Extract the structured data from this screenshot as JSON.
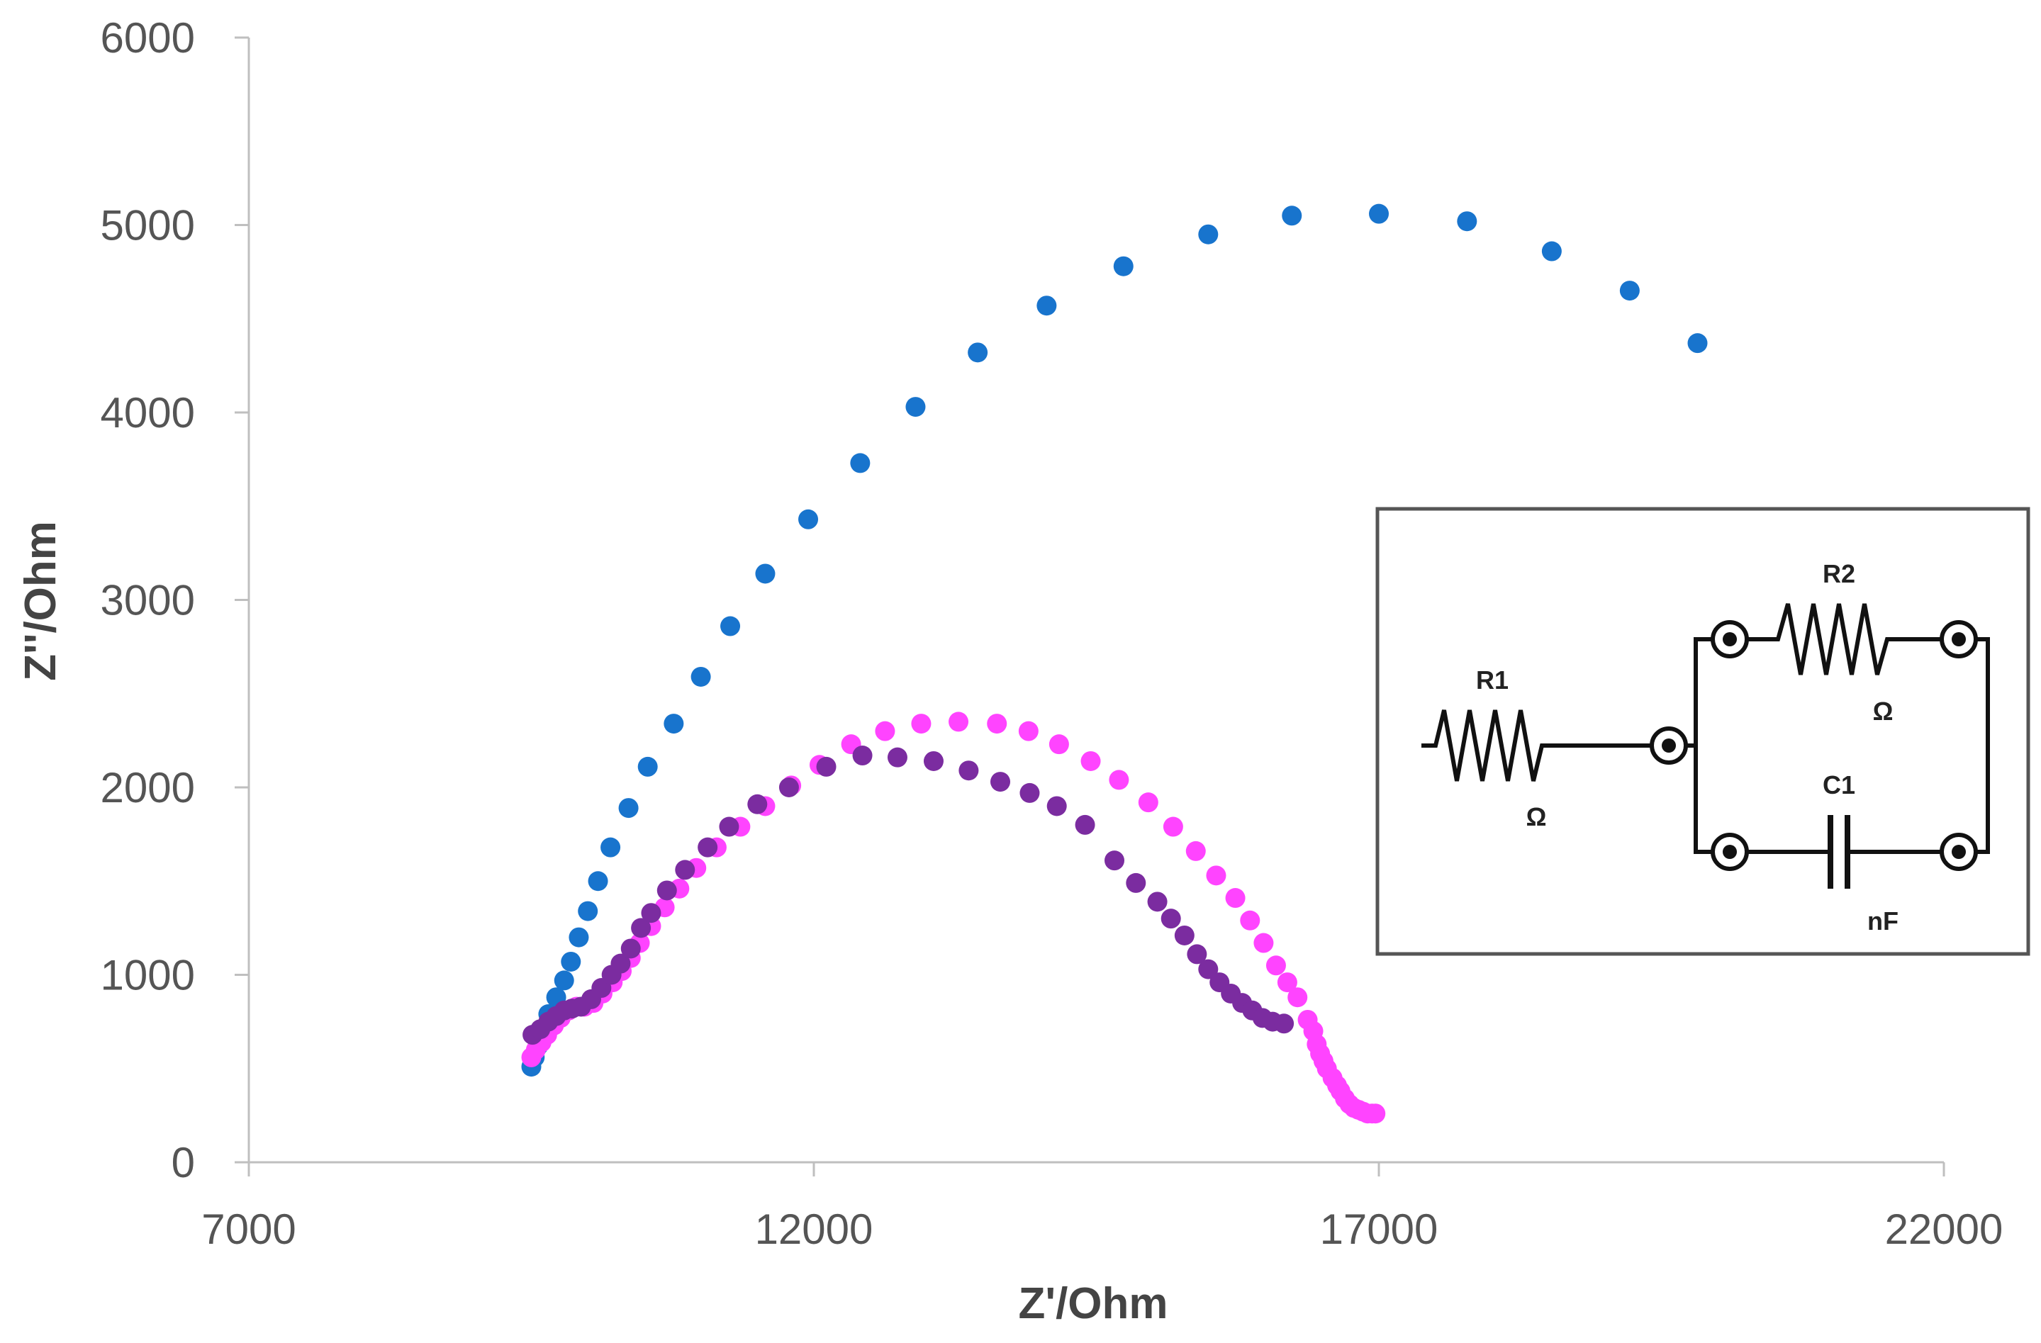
{
  "chart_data": {
    "type": "scatter",
    "title": "",
    "xlabel": "Z'/Ohm",
    "ylabel": "Z''/Ohm",
    "xlim": [
      7000,
      22000
    ],
    "ylim": [
      0,
      6000
    ],
    "xticks": [
      7000,
      12000,
      17000,
      22000
    ],
    "yticks": [
      0,
      1000,
      2000,
      3000,
      4000,
      5000,
      6000
    ],
    "xtick_labels": [
      "7000",
      "12000",
      "17000",
      "22000"
    ],
    "ytick_labels": [
      "0",
      "1000",
      "2000",
      "3000",
      "4000",
      "5000",
      "6000"
    ],
    "grid": false,
    "legend": "none",
    "series": [
      {
        "color": "#1874CD",
        "points": [
          [
            9500,
            510
          ],
          [
            9530,
            560
          ],
          [
            9560,
            620
          ],
          [
            9600,
            700
          ],
          [
            9650,
            790
          ],
          [
            9720,
            880
          ],
          [
            9790,
            970
          ],
          [
            9850,
            1070
          ],
          [
            9920,
            1200
          ],
          [
            10000,
            1340
          ],
          [
            10090,
            1500
          ],
          [
            10200,
            1680
          ],
          [
            10360,
            1890
          ],
          [
            10530,
            2110
          ],
          [
            10760,
            2340
          ],
          [
            11000,
            2590
          ],
          [
            11260,
            2860
          ],
          [
            11570,
            3140
          ],
          [
            11950,
            3430
          ],
          [
            12410,
            3730
          ],
          [
            12900,
            4030
          ],
          [
            13450,
            4320
          ],
          [
            14060,
            4570
          ],
          [
            14740,
            4780
          ],
          [
            15490,
            4950
          ],
          [
            16230,
            5050
          ],
          [
            17000,
            5060
          ],
          [
            17780,
            5020
          ],
          [
            18530,
            4860
          ],
          [
            19220,
            4650
          ],
          [
            19820,
            4370
          ]
        ]
      },
      {
        "color": "#FF44FF",
        "points": [
          [
            9500,
            560
          ],
          [
            9540,
            600
          ],
          [
            9590,
            640
          ],
          [
            9640,
            680
          ],
          [
            9700,
            730
          ],
          [
            9760,
            770
          ],
          [
            9830,
            810
          ],
          [
            9900,
            830
          ],
          [
            9970,
            830
          ],
          [
            10050,
            850
          ],
          [
            10130,
            900
          ],
          [
            10220,
            960
          ],
          [
            10300,
            1020
          ],
          [
            10380,
            1090
          ],
          [
            10460,
            1170
          ],
          [
            10560,
            1260
          ],
          [
            10680,
            1360
          ],
          [
            10810,
            1460
          ],
          [
            10960,
            1570
          ],
          [
            11140,
            1680
          ],
          [
            11350,
            1790
          ],
          [
            11570,
            1900
          ],
          [
            11800,
            2010
          ],
          [
            12050,
            2120
          ],
          [
            12330,
            2230
          ],
          [
            12630,
            2300
          ],
          [
            12950,
            2340
          ],
          [
            13280,
            2350
          ],
          [
            13620,
            2340
          ],
          [
            13900,
            2300
          ],
          [
            14170,
            2230
          ],
          [
            14450,
            2140
          ],
          [
            14700,
            2040
          ],
          [
            14960,
            1920
          ],
          [
            15180,
            1790
          ],
          [
            15380,
            1660
          ],
          [
            15560,
            1530
          ],
          [
            15730,
            1410
          ],
          [
            15860,
            1290
          ],
          [
            15980,
            1170
          ],
          [
            16090,
            1050
          ],
          [
            16190,
            960
          ],
          [
            16280,
            880
          ],
          [
            16370,
            760
          ],
          [
            16420,
            700
          ],
          [
            16450,
            630
          ],
          [
            16480,
            580
          ],
          [
            16510,
            540
          ],
          [
            16540,
            500
          ],
          [
            16590,
            450
          ],
          [
            16630,
            410
          ],
          [
            16660,
            380
          ],
          [
            16700,
            340
          ],
          [
            16740,
            310
          ],
          [
            16780,
            290
          ],
          [
            16820,
            280
          ],
          [
            16860,
            270
          ],
          [
            16900,
            260
          ],
          [
            16940,
            260
          ],
          [
            16970,
            260
          ]
        ]
      },
      {
        "color": "#7B2CA0",
        "points": [
          [
            9510,
            680
          ],
          [
            9580,
            710
          ],
          [
            9650,
            750
          ],
          [
            9720,
            780
          ],
          [
            9790,
            810
          ],
          [
            9860,
            820
          ],
          [
            9940,
            830
          ],
          [
            10030,
            870
          ],
          [
            10120,
            930
          ],
          [
            10210,
            1000
          ],
          [
            10290,
            1060
          ],
          [
            10380,
            1140
          ],
          [
            10470,
            1250
          ],
          [
            10560,
            1330
          ],
          [
            10700,
            1450
          ],
          [
            10860,
            1560
          ],
          [
            11060,
            1680
          ],
          [
            11250,
            1790
          ],
          [
            11500,
            1910
          ],
          [
            11780,
            2000
          ],
          [
            12110,
            2110
          ],
          [
            12430,
            2170
          ],
          [
            12740,
            2160
          ],
          [
            13060,
            2140
          ],
          [
            13370,
            2090
          ],
          [
            13650,
            2030
          ],
          [
            13910,
            1970
          ],
          [
            14150,
            1900
          ],
          [
            14400,
            1800
          ],
          [
            14660,
            1610
          ],
          [
            14850,
            1490
          ],
          [
            15040,
            1390
          ],
          [
            15160,
            1300
          ],
          [
            15280,
            1210
          ],
          [
            15390,
            1110
          ],
          [
            15490,
            1030
          ],
          [
            15590,
            960
          ],
          [
            15690,
            900
          ],
          [
            15790,
            850
          ],
          [
            15880,
            810
          ],
          [
            15970,
            770
          ],
          [
            16060,
            750
          ],
          [
            16160,
            740
          ]
        ]
      }
    ]
  },
  "circuit": {
    "r1_label": "R1",
    "r1_unit": "Ω",
    "r2_label": "R2",
    "r2_unit": "Ω",
    "c1_label": "C1",
    "c1_unit": "nF"
  }
}
